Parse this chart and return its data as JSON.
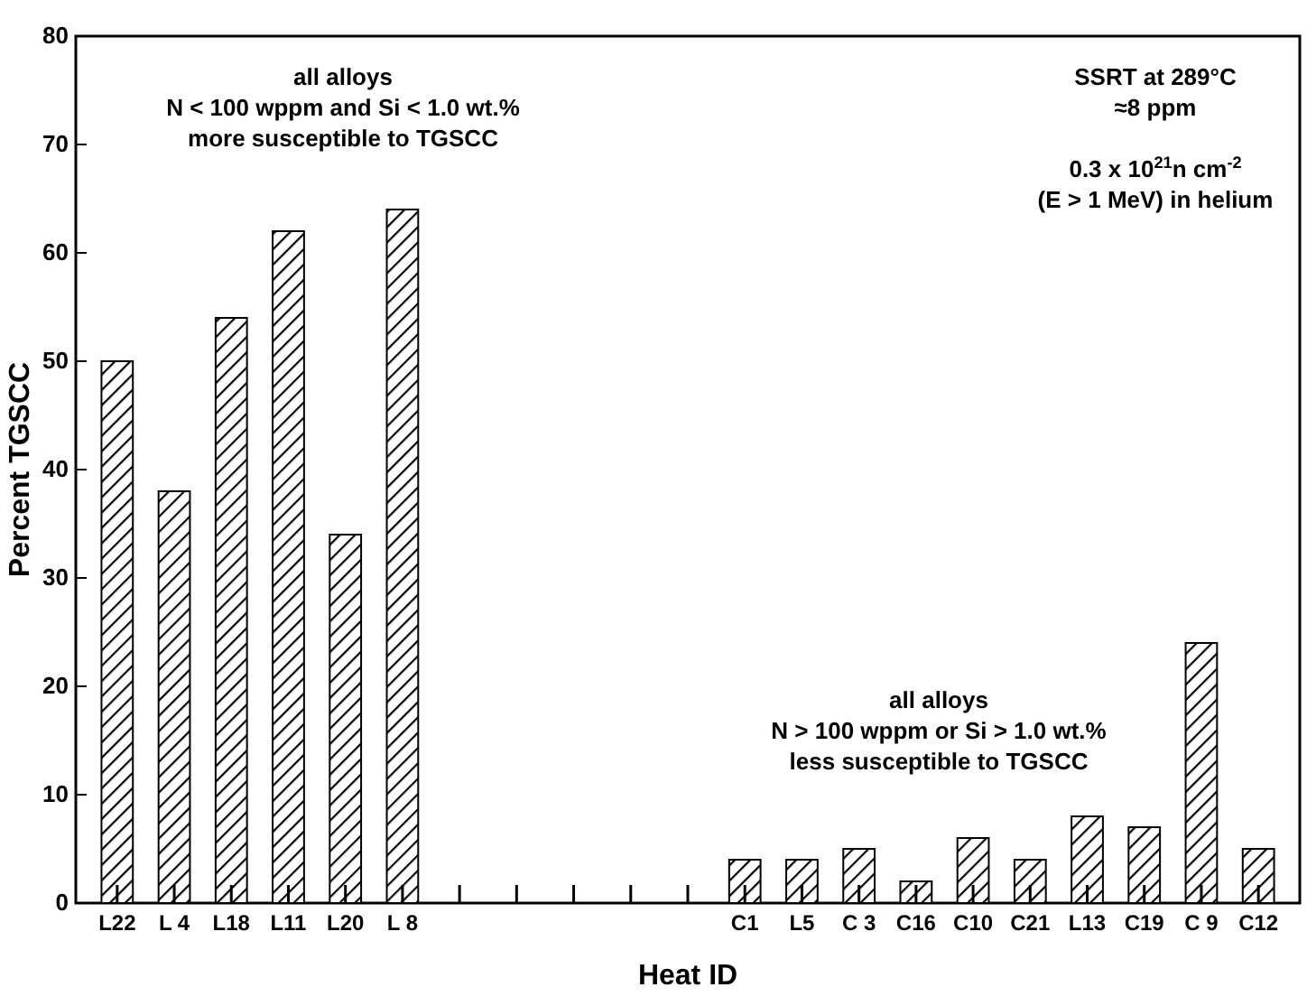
{
  "chart_data": {
    "type": "bar",
    "xlabel": "Heat ID",
    "ylabel": "Percent TGSCC",
    "categories": [
      "L22",
      "L 4",
      "L18",
      "L11",
      "L20",
      "L 8",
      null,
      null,
      null,
      null,
      null,
      "C1",
      "L5",
      "C 3",
      "C16",
      "C10",
      "C21",
      "L13",
      "C19",
      "C 9",
      "C12"
    ],
    "values": [
      50,
      38,
      54,
      62,
      34,
      64,
      null,
      null,
      null,
      null,
      null,
      4,
      4,
      5,
      2,
      6,
      4,
      8,
      7,
      24,
      5
    ],
    "color": "#000000",
    "ylim": [
      0,
      80
    ],
    "yticks": [
      0,
      10,
      20,
      30,
      40,
      50,
      60,
      70,
      80
    ],
    "grid": false,
    "annotations": [
      "all alloys\nN < 100 wppm and Si < 1.0 wt.%\nmore susceptible to TGSCC",
      "SSRT at 289°C\n≈8 ppm\n\n0.3 x 10$^{21}$n cm$^{-2}$\n(E > 1 MeV) in helium",
      "all alloys\nN > 100 wppm or Si > 1.0 wt.%\nless susceptible to TGSCC"
    ]
  }
}
